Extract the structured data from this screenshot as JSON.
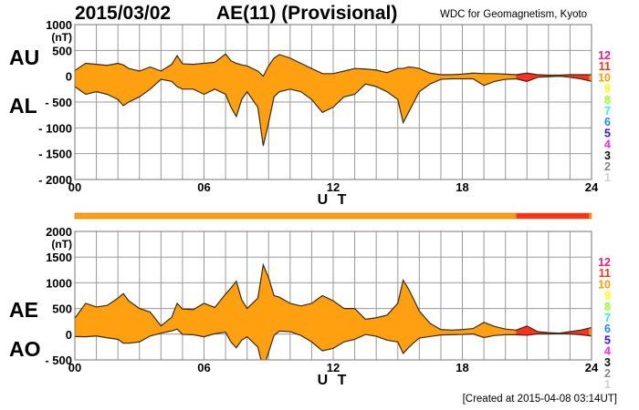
{
  "header": {
    "date": "2015/03/02",
    "title": "AE(11) (Provisional)",
    "org": "WDC for Geomagnetism, Kyoto"
  },
  "footer": "[Created at 2015-04-08 03:14UT]",
  "side_labels": {
    "au": "AU",
    "al": "AL",
    "ae": "AE",
    "ao": "AO"
  },
  "colors": {
    "fill_10": "#ffa010",
    "fill_11": "#ff3020",
    "outline": "#3a2a12",
    "grid": "#999999"
  },
  "station_legend": [
    {
      "n": "12",
      "color": "#ff1a7a"
    },
    {
      "n": "11",
      "color": "#ff3311"
    },
    {
      "n": "10",
      "color": "#ffa000"
    },
    {
      "n": "9",
      "color": "#ffff00"
    },
    {
      "n": "8",
      "color": "#99ff22"
    },
    {
      "n": "7",
      "color": "#22ffcc"
    },
    {
      "n": "6",
      "color": "#2288ff"
    },
    {
      "n": "5",
      "color": "#3311ff"
    },
    {
      "n": "4",
      "color": "#ff22ff"
    },
    {
      "n": "3",
      "color": "#111111"
    },
    {
      "n": "2",
      "color": "#888888"
    },
    {
      "n": "1",
      "color": "#d0d0d0"
    }
  ],
  "chart_data": [
    {
      "type": "area",
      "name": "AU/AL",
      "xlabel": "U T",
      "ylabel": "(nT)",
      "xlim": [
        0,
        24
      ],
      "ylim": [
        -2000,
        1000
      ],
      "xticks": [
        "00",
        "06",
        "12",
        "18",
        "24"
      ],
      "yticks": [
        {
          "v": 1000,
          "label": "1000"
        },
        {
          "v": 500,
          "label": "500"
        },
        {
          "v": 0,
          "label": "0"
        },
        {
          "v": -500,
          "label": "- 500"
        },
        {
          "v": -1000,
          "label": "- 1000"
        },
        {
          "v": -1500,
          "label": "- 1500"
        },
        {
          "v": -2000,
          "label": "- 2000"
        }
      ],
      "grid": true,
      "station_count_segments": [
        {
          "from": 0,
          "to": 20.5,
          "stations": 10
        },
        {
          "from": 20.5,
          "to": 23.9,
          "stations": 11
        },
        {
          "from": 23.9,
          "to": 24,
          "stations": 10
        }
      ],
      "t": [
        0,
        0.5,
        1,
        1.5,
        2,
        2.25,
        2.5,
        3,
        3.5,
        4,
        4.5,
        4.75,
        5,
        5.5,
        6,
        6.5,
        7,
        7.25,
        7.5,
        7.75,
        8,
        8.5,
        8.75,
        9,
        9.25,
        9.5,
        10,
        10.5,
        11,
        11.5,
        12,
        12.5,
        13,
        13.5,
        14,
        14.5,
        15,
        15.25,
        15.5,
        15.75,
        16,
        16.5,
        17,
        17.5,
        18,
        18.5,
        19,
        19.5,
        20,
        20.5,
        21,
        21.5,
        22,
        22.5,
        23,
        23.5,
        24
      ],
      "series": [
        {
          "name": "AU",
          "values": [
            110,
            250,
            230,
            210,
            250,
            220,
            150,
            100,
            180,
            100,
            230,
            400,
            240,
            230,
            250,
            270,
            430,
            300,
            250,
            220,
            200,
            100,
            0,
            200,
            350,
            420,
            350,
            250,
            150,
            50,
            50,
            100,
            150,
            140,
            120,
            70,
            150,
            150,
            180,
            170,
            150,
            60,
            30,
            30,
            40,
            60,
            50,
            50,
            40,
            30,
            60,
            30,
            20,
            20,
            30,
            30,
            30
          ]
        },
        {
          "name": "AL",
          "values": [
            -200,
            -350,
            -300,
            -350,
            -450,
            -570,
            -500,
            -400,
            -250,
            -60,
            -100,
            -200,
            -250,
            -250,
            -350,
            -250,
            -350,
            -600,
            -780,
            -450,
            -300,
            -600,
            -1350,
            -900,
            -400,
            -300,
            -250,
            -300,
            -450,
            -700,
            -600,
            -400,
            -350,
            -150,
            -200,
            -300,
            -450,
            -900,
            -700,
            -500,
            -300,
            -150,
            -60,
            -50,
            -50,
            -50,
            -180,
            -100,
            -60,
            -50,
            -100,
            -20,
            -10,
            0,
            -20,
            -50,
            -100
          ]
        }
      ]
    },
    {
      "type": "area",
      "name": "AE/AO",
      "xlabel": "U T",
      "ylabel": "(nT)",
      "xlim": [
        0,
        24
      ],
      "ylim": [
        -500,
        2000
      ],
      "xticks": [
        "00",
        "06",
        "12",
        "18",
        "24"
      ],
      "yticks": [
        {
          "v": 2000,
          "label": "2000"
        },
        {
          "v": 1500,
          "label": "1500"
        },
        {
          "v": 1000,
          "label": "1000"
        },
        {
          "v": 500,
          "label": "500"
        },
        {
          "v": 0,
          "label": "0"
        },
        {
          "v": -500,
          "label": "- 500"
        }
      ],
      "grid": true,
      "t": [
        0,
        0.5,
        1,
        1.5,
        2,
        2.25,
        2.5,
        3,
        3.5,
        4,
        4.5,
        4.75,
        5,
        5.5,
        6,
        6.5,
        7,
        7.25,
        7.5,
        7.75,
        8,
        8.5,
        8.75,
        9,
        9.25,
        9.5,
        10,
        10.5,
        11,
        11.5,
        12,
        12.5,
        13,
        13.5,
        14,
        14.5,
        15,
        15.25,
        15.5,
        15.75,
        16,
        16.5,
        17,
        17.5,
        18,
        18.5,
        19,
        19.5,
        20,
        20.5,
        21,
        21.5,
        22,
        22.5,
        23,
        23.5,
        24
      ],
      "series": [
        {
          "name": "AE",
          "values": [
            310,
            600,
            530,
            560,
            700,
            790,
            650,
            500,
            430,
            160,
            330,
            600,
            490,
            480,
            600,
            520,
            780,
            900,
            1030,
            670,
            500,
            700,
            1350,
            1100,
            750,
            720,
            600,
            550,
            600,
            750,
            650,
            500,
            500,
            290,
            320,
            370,
            600,
            1050,
            880,
            670,
            450,
            210,
            90,
            80,
            90,
            110,
            230,
            150,
            100,
            80,
            160,
            50,
            30,
            20,
            50,
            80,
            130
          ]
        },
        {
          "name": "AO",
          "values": [
            -45,
            -50,
            -35,
            -70,
            -100,
            -175,
            -175,
            -150,
            -35,
            20,
            65,
            100,
            -5,
            -10,
            -50,
            10,
            40,
            -150,
            -265,
            -115,
            -50,
            -250,
            -675,
            -350,
            -25,
            60,
            50,
            -25,
            -150,
            -325,
            -275,
            -150,
            -100,
            -5,
            -40,
            -115,
            -150,
            -375,
            -260,
            -165,
            -75,
            -45,
            -15,
            -10,
            -5,
            5,
            -65,
            -25,
            -10,
            -10,
            -20,
            5,
            5,
            10,
            5,
            -10,
            -35
          ]
        }
      ]
    }
  ]
}
